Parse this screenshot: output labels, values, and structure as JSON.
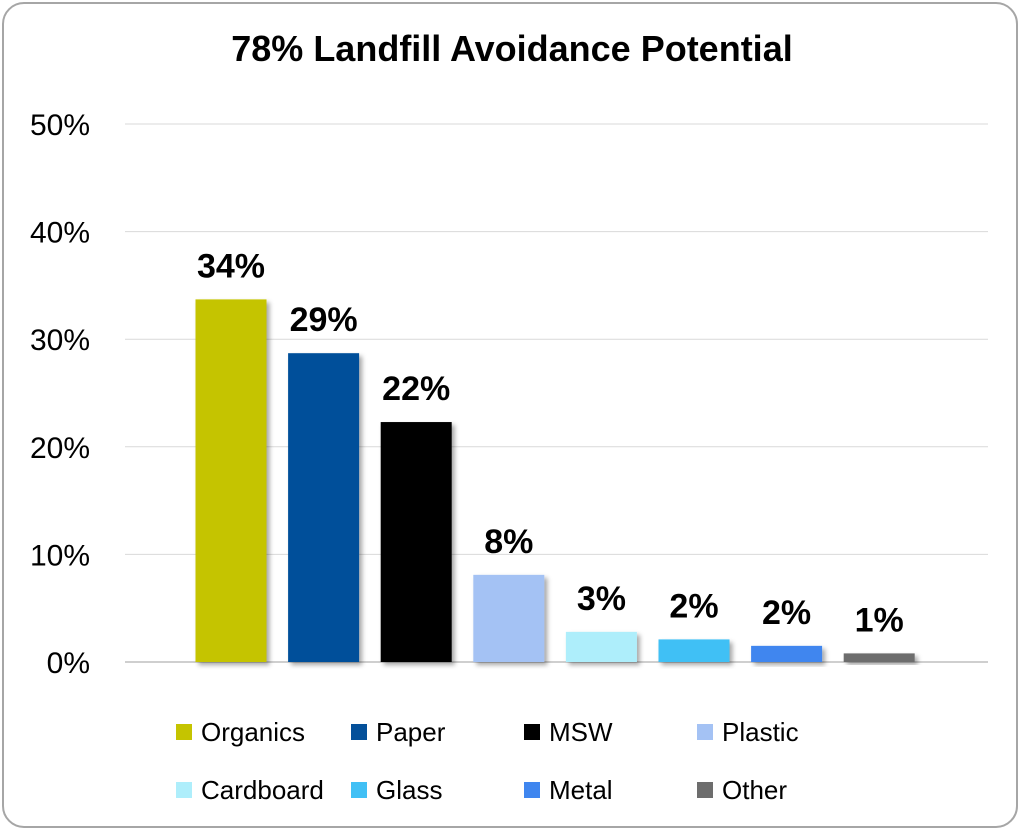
{
  "chart_data": {
    "type": "bar",
    "title": "78% Landfill Avoidance Potential",
    "categories": [
      "Organics",
      "Paper",
      "MSW",
      "Plastic",
      "Cardboard",
      "Glass",
      "Metal",
      "Other"
    ],
    "values": [
      33.7,
      28.7,
      22.3,
      8.1,
      2.8,
      2.1,
      1.5,
      0.8
    ],
    "data_labels": [
      "34%",
      "29%",
      "22%",
      "8%",
      "3%",
      "2%",
      "2%",
      "1%"
    ],
    "colors": [
      "#c5c400",
      "#04509a",
      "#000000",
      "#a4c2f4",
      "#aeeefb",
      "#41c0f5",
      "#3f86ef",
      "#6d6d6d"
    ],
    "ylim": [
      0,
      50
    ],
    "yticks": [
      "0%",
      "10%",
      "20%",
      "30%",
      "40%",
      "50%"
    ],
    "grid": true,
    "legend_position": "bottom"
  }
}
